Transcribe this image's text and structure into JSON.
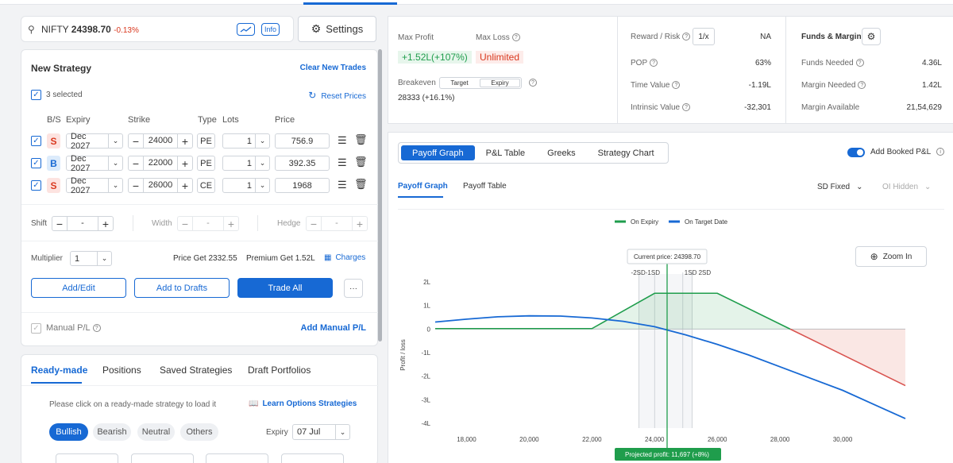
{
  "search": {
    "symbol": "NIFTY",
    "price": "24398.70",
    "change": "-0.13%",
    "info_label": "Info"
  },
  "settings_label": "Settings",
  "new_strategy": {
    "title": "New Strategy",
    "clear_label": "Clear New Trades",
    "selected": "3 selected",
    "reset_label": "Reset Prices",
    "headers": {
      "bs": "B/S",
      "expiry": "Expiry",
      "strike": "Strike",
      "type": "Type",
      "lots": "Lots",
      "price": "Price"
    },
    "rows": [
      {
        "bs": "S",
        "expiry": "Dec 2027",
        "strike": "24000",
        "type": "PE",
        "lots": "1",
        "price": "756.9"
      },
      {
        "bs": "B",
        "expiry": "Dec 2027",
        "strike": "22000",
        "type": "PE",
        "lots": "1",
        "price": "392.35"
      },
      {
        "bs": "S",
        "expiry": "Dec 2027",
        "strike": "26000",
        "type": "CE",
        "lots": "1",
        "price": "1968"
      }
    ],
    "shift_label": "Shift",
    "shift_value": "-",
    "width_label": "Width",
    "width_value": "-",
    "hedge_label": "Hedge",
    "hedge_value": "-",
    "multiplier_label": "Multiplier",
    "multiplier_value": "1",
    "price_get_label": "Price",
    "price_get_prefix": "Get",
    "price_get_value": "2332.55",
    "premium_label": "Premium",
    "premium_prefix": "Get",
    "premium_value": "1.52L",
    "charges_label": "Charges",
    "add_edit": "Add/Edit",
    "add_drafts": "Add to Drafts",
    "trade_all": "Trade All",
    "more": "···",
    "manual_pl": "Manual P/L",
    "add_manual_pl": "Add Manual P/L"
  },
  "ready_made": {
    "tabs": [
      "Ready-made",
      "Positions",
      "Saved Strategies",
      "Draft Portfolios"
    ],
    "hint": "Please click on a ready-made strategy to load it",
    "learn_label": "Learn Options Strategies",
    "pills": [
      "Bullish",
      "Bearish",
      "Neutral",
      "Others"
    ],
    "expiry_label": "Expiry",
    "expiry_value": "07 Jul"
  },
  "summary": {
    "max_profit_label": "Max Profit",
    "max_profit": "+1.52L(+107%)",
    "max_loss_label": "Max Loss",
    "max_loss": "Unlimited",
    "breakeven_label": "Breakeven",
    "target_chip": "Target",
    "expiry_chip": "Expiry",
    "breakeven_value": "28333 (+16.1%)",
    "reward_risk_label": "Reward / Risk",
    "reward_risk_chip": "1/x",
    "reward_risk": "NA",
    "pop_label": "POP",
    "pop": "63%",
    "time_value_label": "Time Value",
    "time_value": "-1.19L",
    "intrinsic_label": "Intrinsic Value",
    "intrinsic": "-32,301",
    "funds_title": "Funds & Margins",
    "funds_needed_label": "Funds Needed",
    "funds_needed": "4.36L",
    "margin_needed_label": "Margin Needed",
    "margin_needed": "1.42L",
    "margin_available_label": "Margin Available",
    "margin_available": "21,54,629"
  },
  "chart_panel": {
    "tabs": [
      "Payoff Graph",
      "P&L Table",
      "Greeks",
      "Strategy Chart"
    ],
    "add_booked": "Add Booked P&L",
    "subtabs": [
      "Payoff Graph",
      "Payoff Table"
    ],
    "sd_label": "SD Fixed",
    "oi_label": "OI Hidden",
    "zoom_label": "Zoom In",
    "current_price": "Current price: 24398.70",
    "sd_left": "-2SD-1SD",
    "sd_right": "1SD 2SD",
    "projected": "Projected profit: 11,697 (+8%)"
  },
  "chart_data": {
    "type": "line",
    "ylabel": "Profit / loss",
    "legend": [
      "On Expiry",
      "On Target Date"
    ],
    "legend_colors": [
      "#1f9d4c",
      "#1769d4"
    ],
    "xticks": [
      "18,000",
      "20,000",
      "22,000",
      "24,000",
      "26,000",
      "28,000",
      "30,000"
    ],
    "yticks": [
      "2L",
      "1L",
      "0",
      "-1L",
      "-2L",
      "-3L",
      "-4L"
    ],
    "xlim": [
      17000,
      32000
    ],
    "ylim": [
      -4.2,
      2.0
    ],
    "current_price": 24398.7,
    "sd_lines": [
      23500,
      24000,
      24900,
      25200
    ],
    "series": [
      {
        "name": "On Expiry",
        "x": [
          17000,
          22000,
          24000,
          26000,
          32000
        ],
        "y": [
          0.02,
          0.02,
          1.52,
          1.52,
          -2.4
        ]
      },
      {
        "name": "On Target Date",
        "x": [
          17000,
          18000,
          19000,
          20000,
          21000,
          22000,
          23000,
          24000,
          25000,
          26000,
          27000,
          28000,
          29000,
          30000,
          31000,
          32000
        ],
        "y": [
          0.3,
          0.42,
          0.52,
          0.56,
          0.55,
          0.47,
          0.33,
          0.1,
          -0.25,
          -0.65,
          -1.1,
          -1.6,
          -2.1,
          -2.6,
          -3.2,
          -3.8
        ]
      }
    ]
  }
}
